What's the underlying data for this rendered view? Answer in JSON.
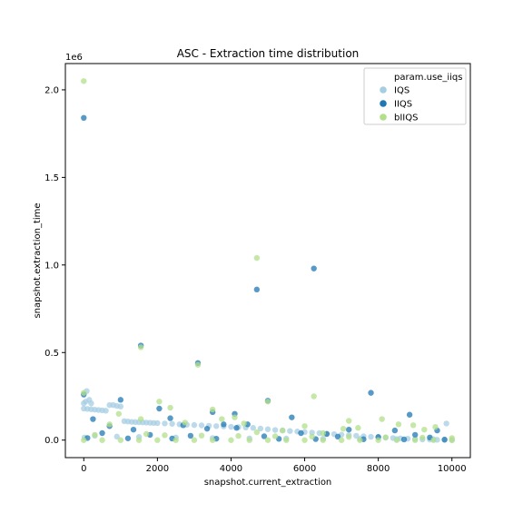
{
  "chart_data": {
    "type": "scatter",
    "title": "ASC - Extraction time distribution",
    "xlabel": "snapshot.current_extraction",
    "ylabel": "snapshot.extraction_time",
    "y_offset_label": "1e6",
    "xlim": [
      -500,
      10500
    ],
    "ylim": [
      -100000,
      2150000
    ],
    "x_ticks": [
      0,
      2000,
      4000,
      6000,
      8000,
      10000
    ],
    "x_tick_labels": [
      "0",
      "2000",
      "4000",
      "6000",
      "8000",
      "10000"
    ],
    "y_ticks": [
      0,
      500000,
      1000000,
      1500000,
      2000000
    ],
    "y_tick_labels": [
      "0.0",
      "0.5",
      "1.0",
      "1.5",
      "2.0"
    ],
    "grid": false,
    "legend": {
      "title": "param.use_iiqs",
      "placement": "top-right",
      "entries": [
        "IQS",
        "IIQS",
        "bIIQS"
      ]
    },
    "series": [
      {
        "name": "IQS",
        "color": "#a6cee3",
        "note": "dense decaying band: ~180k near x=0 falling to ~0 near x=10000, plus spread near 0",
        "points": [
          [
            0,
            210000
          ],
          [
            50,
            220000
          ],
          [
            80,
            280000
          ],
          [
            150,
            230000
          ],
          [
            200,
            210000
          ],
          [
            0,
            180000
          ],
          [
            100,
            178000
          ],
          [
            200,
            176000
          ],
          [
            300,
            174000
          ],
          [
            400,
            172000
          ],
          [
            500,
            170000
          ],
          [
            600,
            168000
          ],
          [
            700,
            200000
          ],
          [
            800,
            200000
          ],
          [
            900,
            195000
          ],
          [
            1000,
            192000
          ],
          [
            1100,
            108000
          ],
          [
            1200,
            106000
          ],
          [
            1300,
            104000
          ],
          [
            1400,
            103000
          ],
          [
            1500,
            102000
          ],
          [
            1600,
            101000
          ],
          [
            1700,
            100000
          ],
          [
            1800,
            99000
          ],
          [
            1900,
            98000
          ],
          [
            2000,
            97000
          ],
          [
            2200,
            95000
          ],
          [
            2400,
            93000
          ],
          [
            2600,
            90000
          ],
          [
            2800,
            88000
          ],
          [
            3000,
            86000
          ],
          [
            3200,
            84000
          ],
          [
            3400,
            82000
          ],
          [
            3600,
            80000
          ],
          [
            3800,
            78000
          ],
          [
            4000,
            76000
          ],
          [
            4200,
            74000
          ],
          [
            4400,
            72000
          ],
          [
            4600,
            70000
          ],
          [
            4800,
            66000
          ],
          [
            5000,
            62000
          ],
          [
            5200,
            58000
          ],
          [
            5400,
            55000
          ],
          [
            5600,
            52000
          ],
          [
            5800,
            49000
          ],
          [
            6000,
            46000
          ],
          [
            6200,
            43000
          ],
          [
            6400,
            40000
          ],
          [
            6600,
            37000
          ],
          [
            6800,
            34000
          ],
          [
            7000,
            31000
          ],
          [
            7200,
            28000
          ],
          [
            7400,
            25000
          ],
          [
            7600,
            22000
          ],
          [
            7800,
            19000
          ],
          [
            8000,
            16000
          ],
          [
            8200,
            14000
          ],
          [
            8400,
            12000
          ],
          [
            8600,
            10000
          ],
          [
            8800,
            8000
          ],
          [
            9000,
            6000
          ],
          [
            9200,
            4000
          ],
          [
            9400,
            3000
          ],
          [
            9600,
            2000
          ],
          [
            9800,
            1000
          ],
          [
            10000,
            500
          ],
          [
            9850,
            95000
          ],
          [
            20,
            15000
          ],
          [
            300,
            25000
          ],
          [
            900,
            20000
          ],
          [
            1500,
            18000
          ],
          [
            2500,
            15000
          ],
          [
            3500,
            12000
          ],
          [
            4500,
            10000
          ],
          [
            5500,
            9000
          ],
          [
            6500,
            8000
          ],
          [
            7500,
            7000
          ],
          [
            8500,
            6000
          ],
          [
            9500,
            5000
          ]
        ]
      },
      {
        "name": "IIQS",
        "color": "#1f78b4",
        "note": "mostly near 0 with sparse outliers",
        "points": [
          [
            0,
            1840000
          ],
          [
            6250,
            980000
          ],
          [
            4700,
            860000
          ],
          [
            1550,
            540000
          ],
          [
            3100,
            440000
          ],
          [
            7800,
            270000
          ],
          [
            0,
            260000
          ],
          [
            1000,
            230000
          ],
          [
            5000,
            225000
          ],
          [
            2050,
            180000
          ],
          [
            3500,
            160000
          ],
          [
            4100,
            150000
          ],
          [
            8850,
            145000
          ],
          [
            5650,
            130000
          ],
          [
            250,
            120000
          ],
          [
            2350,
            125000
          ],
          [
            3800,
            90000
          ],
          [
            4450,
            90000
          ],
          [
            4150,
            70000
          ],
          [
            2700,
            85000
          ],
          [
            700,
            80000
          ],
          [
            1350,
            60000
          ],
          [
            3350,
            65000
          ],
          [
            7200,
            60000
          ],
          [
            8450,
            55000
          ],
          [
            9600,
            55000
          ],
          [
            5900,
            40000
          ],
          [
            6600,
            35000
          ],
          [
            9000,
            30000
          ],
          [
            500,
            40000
          ],
          [
            1800,
            30000
          ],
          [
            2900,
            25000
          ],
          [
            4900,
            22000
          ],
          [
            6900,
            20000
          ],
          [
            8000,
            18000
          ],
          [
            9400,
            15000
          ],
          [
            100,
            12000
          ],
          [
            1200,
            10000
          ],
          [
            2400,
            9000
          ],
          [
            3600,
            8000
          ],
          [
            5300,
            7000
          ],
          [
            6300,
            6000
          ],
          [
            7600,
            5000
          ],
          [
            8700,
            4000
          ],
          [
            9800,
            3000
          ]
        ]
      },
      {
        "name": "bIIQS",
        "color": "#b2df8a",
        "note": "mostly near 0 with sparse outliers",
        "points": [
          [
            0,
            2050000
          ],
          [
            4700,
            1040000
          ],
          [
            1550,
            530000
          ],
          [
            3100,
            430000
          ],
          [
            0,
            270000
          ],
          [
            6250,
            250000
          ],
          [
            2050,
            220000
          ],
          [
            5000,
            220000
          ],
          [
            2350,
            185000
          ],
          [
            3500,
            175000
          ],
          [
            7200,
            110000
          ],
          [
            3750,
            120000
          ],
          [
            1550,
            120000
          ],
          [
            8100,
            120000
          ],
          [
            4100,
            130000
          ],
          [
            950,
            150000
          ],
          [
            4350,
            95000
          ],
          [
            8550,
            90000
          ],
          [
            8950,
            85000
          ],
          [
            9550,
            75000
          ],
          [
            7450,
            70000
          ],
          [
            7050,
            65000
          ],
          [
            2750,
            100000
          ],
          [
            700,
            90000
          ],
          [
            9250,
            60000
          ],
          [
            6000,
            80000
          ],
          [
            5400,
            55000
          ],
          [
            4700,
            45000
          ],
          [
            6500,
            40000
          ],
          [
            1700,
            35000
          ],
          [
            300,
            30000
          ],
          [
            2200,
            28000
          ],
          [
            3200,
            26000
          ],
          [
            4200,
            24000
          ],
          [
            5200,
            22000
          ],
          [
            6200,
            20000
          ],
          [
            7200,
            18000
          ],
          [
            8200,
            16000
          ],
          [
            9200,
            14000
          ],
          [
            10000,
            12000
          ],
          [
            0,
            0
          ],
          [
            500,
            0
          ],
          [
            1000,
            0
          ],
          [
            1500,
            0
          ],
          [
            2000,
            0
          ],
          [
            2500,
            0
          ],
          [
            3000,
            0
          ],
          [
            3500,
            0
          ],
          [
            4000,
            0
          ],
          [
            4500,
            0
          ],
          [
            5000,
            0
          ],
          [
            5500,
            0
          ],
          [
            6000,
            0
          ],
          [
            6500,
            0
          ],
          [
            7000,
            0
          ],
          [
            7500,
            0
          ],
          [
            8000,
            0
          ],
          [
            8500,
            0
          ],
          [
            9000,
            0
          ],
          [
            9500,
            0
          ],
          [
            10000,
            0
          ]
        ]
      }
    ]
  }
}
